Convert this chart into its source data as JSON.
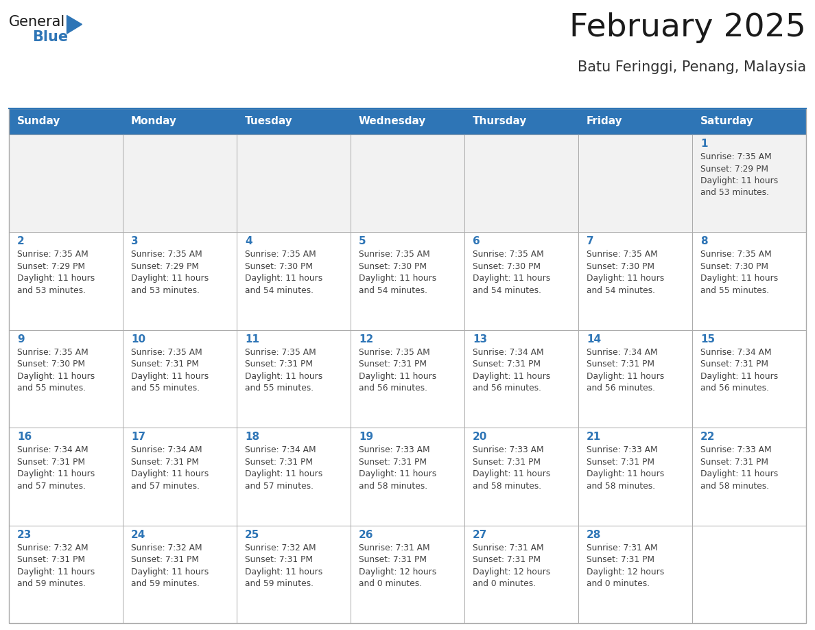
{
  "title": "February 2025",
  "subtitle": "Batu Feringgi, Penang, Malaysia",
  "days_of_week": [
    "Sunday",
    "Monday",
    "Tuesday",
    "Wednesday",
    "Thursday",
    "Friday",
    "Saturday"
  ],
  "header_bg": "#2E75B6",
  "header_text": "#FFFFFF",
  "cell_bg": "#FFFFFF",
  "cell_bg_first_row": "#F2F2F2",
  "cell_border": "#AAAAAA",
  "day_num_color": "#2E75B6",
  "info_text_color": "#404040",
  "title_color": "#1a1a1a",
  "subtitle_color": "#333333",
  "logo_general_color": "#1a1a1a",
  "logo_blue_color": "#2E75B6",
  "calendar": [
    [
      null,
      null,
      null,
      null,
      null,
      null,
      {
        "day": 1,
        "sunrise": "7:35 AM",
        "sunset": "7:29 PM",
        "daylight": "11 hours and 53 minutes."
      }
    ],
    [
      {
        "day": 2,
        "sunrise": "7:35 AM",
        "sunset": "7:29 PM",
        "daylight": "11 hours and 53 minutes."
      },
      {
        "day": 3,
        "sunrise": "7:35 AM",
        "sunset": "7:29 PM",
        "daylight": "11 hours and 53 minutes."
      },
      {
        "day": 4,
        "sunrise": "7:35 AM",
        "sunset": "7:30 PM",
        "daylight": "11 hours and 54 minutes."
      },
      {
        "day": 5,
        "sunrise": "7:35 AM",
        "sunset": "7:30 PM",
        "daylight": "11 hours and 54 minutes."
      },
      {
        "day": 6,
        "sunrise": "7:35 AM",
        "sunset": "7:30 PM",
        "daylight": "11 hours and 54 minutes."
      },
      {
        "day": 7,
        "sunrise": "7:35 AM",
        "sunset": "7:30 PM",
        "daylight": "11 hours and 54 minutes."
      },
      {
        "day": 8,
        "sunrise": "7:35 AM",
        "sunset": "7:30 PM",
        "daylight": "11 hours and 55 minutes."
      }
    ],
    [
      {
        "day": 9,
        "sunrise": "7:35 AM",
        "sunset": "7:30 PM",
        "daylight": "11 hours and 55 minutes."
      },
      {
        "day": 10,
        "sunrise": "7:35 AM",
        "sunset": "7:31 PM",
        "daylight": "11 hours and 55 minutes."
      },
      {
        "day": 11,
        "sunrise": "7:35 AM",
        "sunset": "7:31 PM",
        "daylight": "11 hours and 55 minutes."
      },
      {
        "day": 12,
        "sunrise": "7:35 AM",
        "sunset": "7:31 PM",
        "daylight": "11 hours and 56 minutes."
      },
      {
        "day": 13,
        "sunrise": "7:34 AM",
        "sunset": "7:31 PM",
        "daylight": "11 hours and 56 minutes."
      },
      {
        "day": 14,
        "sunrise": "7:34 AM",
        "sunset": "7:31 PM",
        "daylight": "11 hours and 56 minutes."
      },
      {
        "day": 15,
        "sunrise": "7:34 AM",
        "sunset": "7:31 PM",
        "daylight": "11 hours and 56 minutes."
      }
    ],
    [
      {
        "day": 16,
        "sunrise": "7:34 AM",
        "sunset": "7:31 PM",
        "daylight": "11 hours and 57 minutes."
      },
      {
        "day": 17,
        "sunrise": "7:34 AM",
        "sunset": "7:31 PM",
        "daylight": "11 hours and 57 minutes."
      },
      {
        "day": 18,
        "sunrise": "7:34 AM",
        "sunset": "7:31 PM",
        "daylight": "11 hours and 57 minutes."
      },
      {
        "day": 19,
        "sunrise": "7:33 AM",
        "sunset": "7:31 PM",
        "daylight": "11 hours and 58 minutes."
      },
      {
        "day": 20,
        "sunrise": "7:33 AM",
        "sunset": "7:31 PM",
        "daylight": "11 hours and 58 minutes."
      },
      {
        "day": 21,
        "sunrise": "7:33 AM",
        "sunset": "7:31 PM",
        "daylight": "11 hours and 58 minutes."
      },
      {
        "day": 22,
        "sunrise": "7:33 AM",
        "sunset": "7:31 PM",
        "daylight": "11 hours and 58 minutes."
      }
    ],
    [
      {
        "day": 23,
        "sunrise": "7:32 AM",
        "sunset": "7:31 PM",
        "daylight": "11 hours and 59 minutes."
      },
      {
        "day": 24,
        "sunrise": "7:32 AM",
        "sunset": "7:31 PM",
        "daylight": "11 hours and 59 minutes."
      },
      {
        "day": 25,
        "sunrise": "7:32 AM",
        "sunset": "7:31 PM",
        "daylight": "11 hours and 59 minutes."
      },
      {
        "day": 26,
        "sunrise": "7:31 AM",
        "sunset": "7:31 PM",
        "daylight": "12 hours and 0 minutes."
      },
      {
        "day": 27,
        "sunrise": "7:31 AM",
        "sunset": "7:31 PM",
        "daylight": "12 hours and 0 minutes."
      },
      {
        "day": 28,
        "sunrise": "7:31 AM",
        "sunset": "7:31 PM",
        "daylight": "12 hours and 0 minutes."
      },
      null
    ]
  ]
}
